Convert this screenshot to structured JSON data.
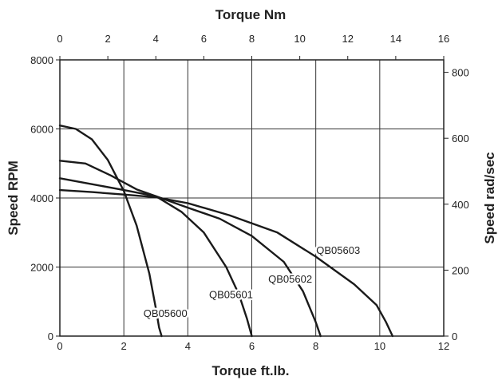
{
  "chart_data": {
    "type": "line",
    "title": "",
    "xlabel_bottom": "Torque ft.lb.",
    "xlabel_top": "Torque Nm",
    "ylabel_left": "Speed RPM",
    "ylabel_right": "Speed rad/sec",
    "x_bottom_range": [
      0,
      12
    ],
    "x_bottom_ticks": [
      "0",
      "2",
      "4",
      "6",
      "8",
      "10",
      "12"
    ],
    "x_top_range": [
      0,
      16
    ],
    "x_top_ticks": [
      "0",
      "2",
      "4",
      "6",
      "8",
      "10",
      "12",
      "14",
      "16"
    ],
    "y_left_range": [
      0,
      8000
    ],
    "y_left_ticks": [
      "0",
      "2000",
      "4000",
      "6000",
      "8000"
    ],
    "y_right_range": [
      0,
      837.76
    ],
    "y_right_ticks": [
      "0",
      "200",
      "400",
      "600",
      "800"
    ],
    "grid": true,
    "series": [
      {
        "name": "QB05600",
        "x": [
          0,
          0.5,
          1.0,
          1.5,
          2.0,
          2.4,
          2.8,
          3.0,
          3.1,
          3.18
        ],
        "y": [
          6100,
          6000,
          5700,
          5100,
          4200,
          3200,
          1800,
          800,
          250,
          0
        ]
      },
      {
        "name": "QB05601",
        "x": [
          0,
          0.8,
          1.6,
          2.4,
          3.0,
          3.8,
          4.5,
          5.2,
          5.6,
          5.85,
          6.0
        ],
        "y": [
          5080,
          5000,
          4650,
          4250,
          4050,
          3600,
          3000,
          2000,
          1200,
          500,
          0
        ]
      },
      {
        "name": "QB05602",
        "x": [
          0,
          1.0,
          2.0,
          3.0,
          4.0,
          5.0,
          6.0,
          7.0,
          7.6,
          8.0,
          8.15
        ],
        "y": [
          4570,
          4400,
          4230,
          4050,
          3720,
          3400,
          2900,
          2150,
          1300,
          400,
          0
        ]
      },
      {
        "name": "QB05603",
        "x": [
          0,
          1.0,
          2.0,
          3.0,
          4.0,
          5.3,
          6.8,
          8.0,
          9.2,
          9.9,
          10.2,
          10.4
        ],
        "y": [
          4230,
          4170,
          4100,
          4020,
          3850,
          3500,
          3000,
          2300,
          1500,
          900,
          400,
          0
        ]
      }
    ],
    "series_labels": [
      {
        "text": "QB05600",
        "x": 3.3,
        "y": 550
      },
      {
        "text": "QB05601",
        "x": 5.35,
        "y": 1100
      },
      {
        "text": "QB05602",
        "x": 7.2,
        "y": 1550
      },
      {
        "text": "QB05603",
        "x": 8.7,
        "y": 2380
      }
    ]
  }
}
